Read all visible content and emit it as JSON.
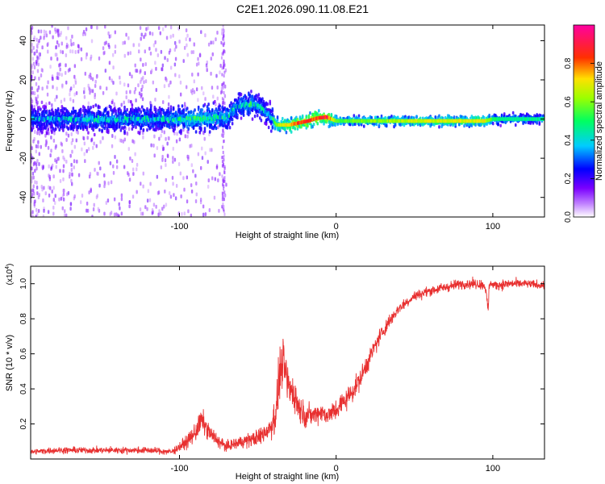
{
  "title": "C2E1.2026.090.11.08.E21",
  "colors": {
    "line": "#e83030",
    "axis": "#000000",
    "background": "#ffffff"
  },
  "chart_data": [
    {
      "type": "heatmap",
      "name": "spectrogram",
      "title": "C2E1.2026.090.11.08.E21",
      "xlabel": "Height of straight line (km)",
      "ylabel": "Frequency (Hz)",
      "xlim": [
        -195,
        133
      ],
      "ylim": [
        -50,
        48
      ],
      "xticks": [
        -100,
        0,
        100
      ],
      "yticks": [
        -40,
        -20,
        0,
        20,
        40
      ],
      "xtick_labels": [
        "-100",
        "0",
        "100"
      ],
      "ytick_labels": [
        "-40",
        "-20",
        "0",
        "20",
        "40"
      ],
      "grid": false,
      "colorbar": {
        "label": "Normalized spectral amplitude",
        "range": [
          0,
          1
        ],
        "ticks": [
          0,
          0.2,
          0.4,
          0.6,
          0.8
        ],
        "tick_labels": [
          "0.0",
          "0.2",
          "0.4",
          "0.6",
          "0.8"
        ],
        "colormap": "rainbow (white-violet-blue-cyan-green-yellow-red-magenta)"
      },
      "ridge": {
        "x": [
          -195,
          -150,
          -110,
          -90,
          -70,
          -62,
          -55,
          -48,
          -42,
          -38,
          -30,
          -24,
          -18,
          -12,
          -6,
          0,
          50,
          95,
          100,
          110,
          133
        ],
        "freq": [
          0,
          0,
          0,
          0,
          1,
          7,
          8,
          6,
          1,
          -3,
          -3,
          -2,
          -1,
          0.5,
          1,
          -1,
          -1,
          -1,
          0,
          0,
          0
        ],
        "amplitude": [
          0.4,
          0.45,
          0.45,
          0.55,
          0.5,
          0.45,
          0.5,
          0.45,
          0.4,
          0.65,
          0.8,
          0.9,
          0.9,
          0.9,
          0.95,
          0.6,
          0.7,
          0.75,
          0.55,
          0.5,
          0.5
        ]
      }
    },
    {
      "type": "line",
      "name": "snr",
      "xlabel": "Height of straight line (km)",
      "ylabel": "SNR (10 * v/v)",
      "y_multiplier": "(x10",
      "y_multiplier_exponent": "4",
      "y_multiplier_close": ")",
      "xlim": [
        -195,
        133
      ],
      "ylim": [
        0,
        1.1
      ],
      "xticks": [
        -100,
        0,
        100
      ],
      "yticks": [
        0.2,
        0.4,
        0.6,
        0.8,
        1.0
      ],
      "xtick_labels": [
        "-100",
        "0",
        "100"
      ],
      "ytick_labels": [
        "0.2",
        "0.4",
        "0.6",
        "0.8",
        "1.0"
      ],
      "grid": false,
      "series": [
        {
          "name": "SNR",
          "x": [
            -195,
            -180,
            -160,
            -140,
            -120,
            -105,
            -100,
            -95,
            -90,
            -86,
            -80,
            -75,
            -70,
            -60,
            -50,
            -42,
            -38,
            -36,
            -34,
            -30,
            -27,
            -24,
            -20,
            -15,
            -10,
            -5,
            0,
            5,
            10,
            15,
            20,
            25,
            30,
            35,
            40,
            50,
            60,
            70,
            80,
            90,
            95,
            97,
            98,
            99,
            100,
            110,
            120,
            133
          ],
          "y": [
            0.04,
            0.05,
            0.05,
            0.05,
            0.05,
            0.04,
            0.07,
            0.1,
            0.15,
            0.22,
            0.14,
            0.1,
            0.07,
            0.1,
            0.12,
            0.18,
            0.28,
            0.5,
            0.55,
            0.4,
            0.38,
            0.3,
            0.25,
            0.25,
            0.27,
            0.25,
            0.28,
            0.33,
            0.38,
            0.45,
            0.55,
            0.65,
            0.73,
            0.8,
            0.86,
            0.93,
            0.96,
            0.98,
            1.0,
            1.0,
            0.99,
            0.85,
            1.02,
            1.0,
            0.99,
            1.0,
            1.0,
            0.99
          ],
          "noise": [
            0.015,
            0.02,
            0.02,
            0.02,
            0.02,
            0.02,
            0.03,
            0.04,
            0.06,
            0.07,
            0.05,
            0.04,
            0.03,
            0.04,
            0.05,
            0.08,
            0.13,
            0.15,
            0.14,
            0.12,
            0.11,
            0.09,
            0.07,
            0.06,
            0.06,
            0.06,
            0.07,
            0.07,
            0.06,
            0.06,
            0.06,
            0.05,
            0.05,
            0.04,
            0.035,
            0.03,
            0.03,
            0.03,
            0.03,
            0.03,
            0.03,
            0.05,
            0.04,
            0.03,
            0.03,
            0.03,
            0.025,
            0.025
          ]
        }
      ]
    }
  ]
}
